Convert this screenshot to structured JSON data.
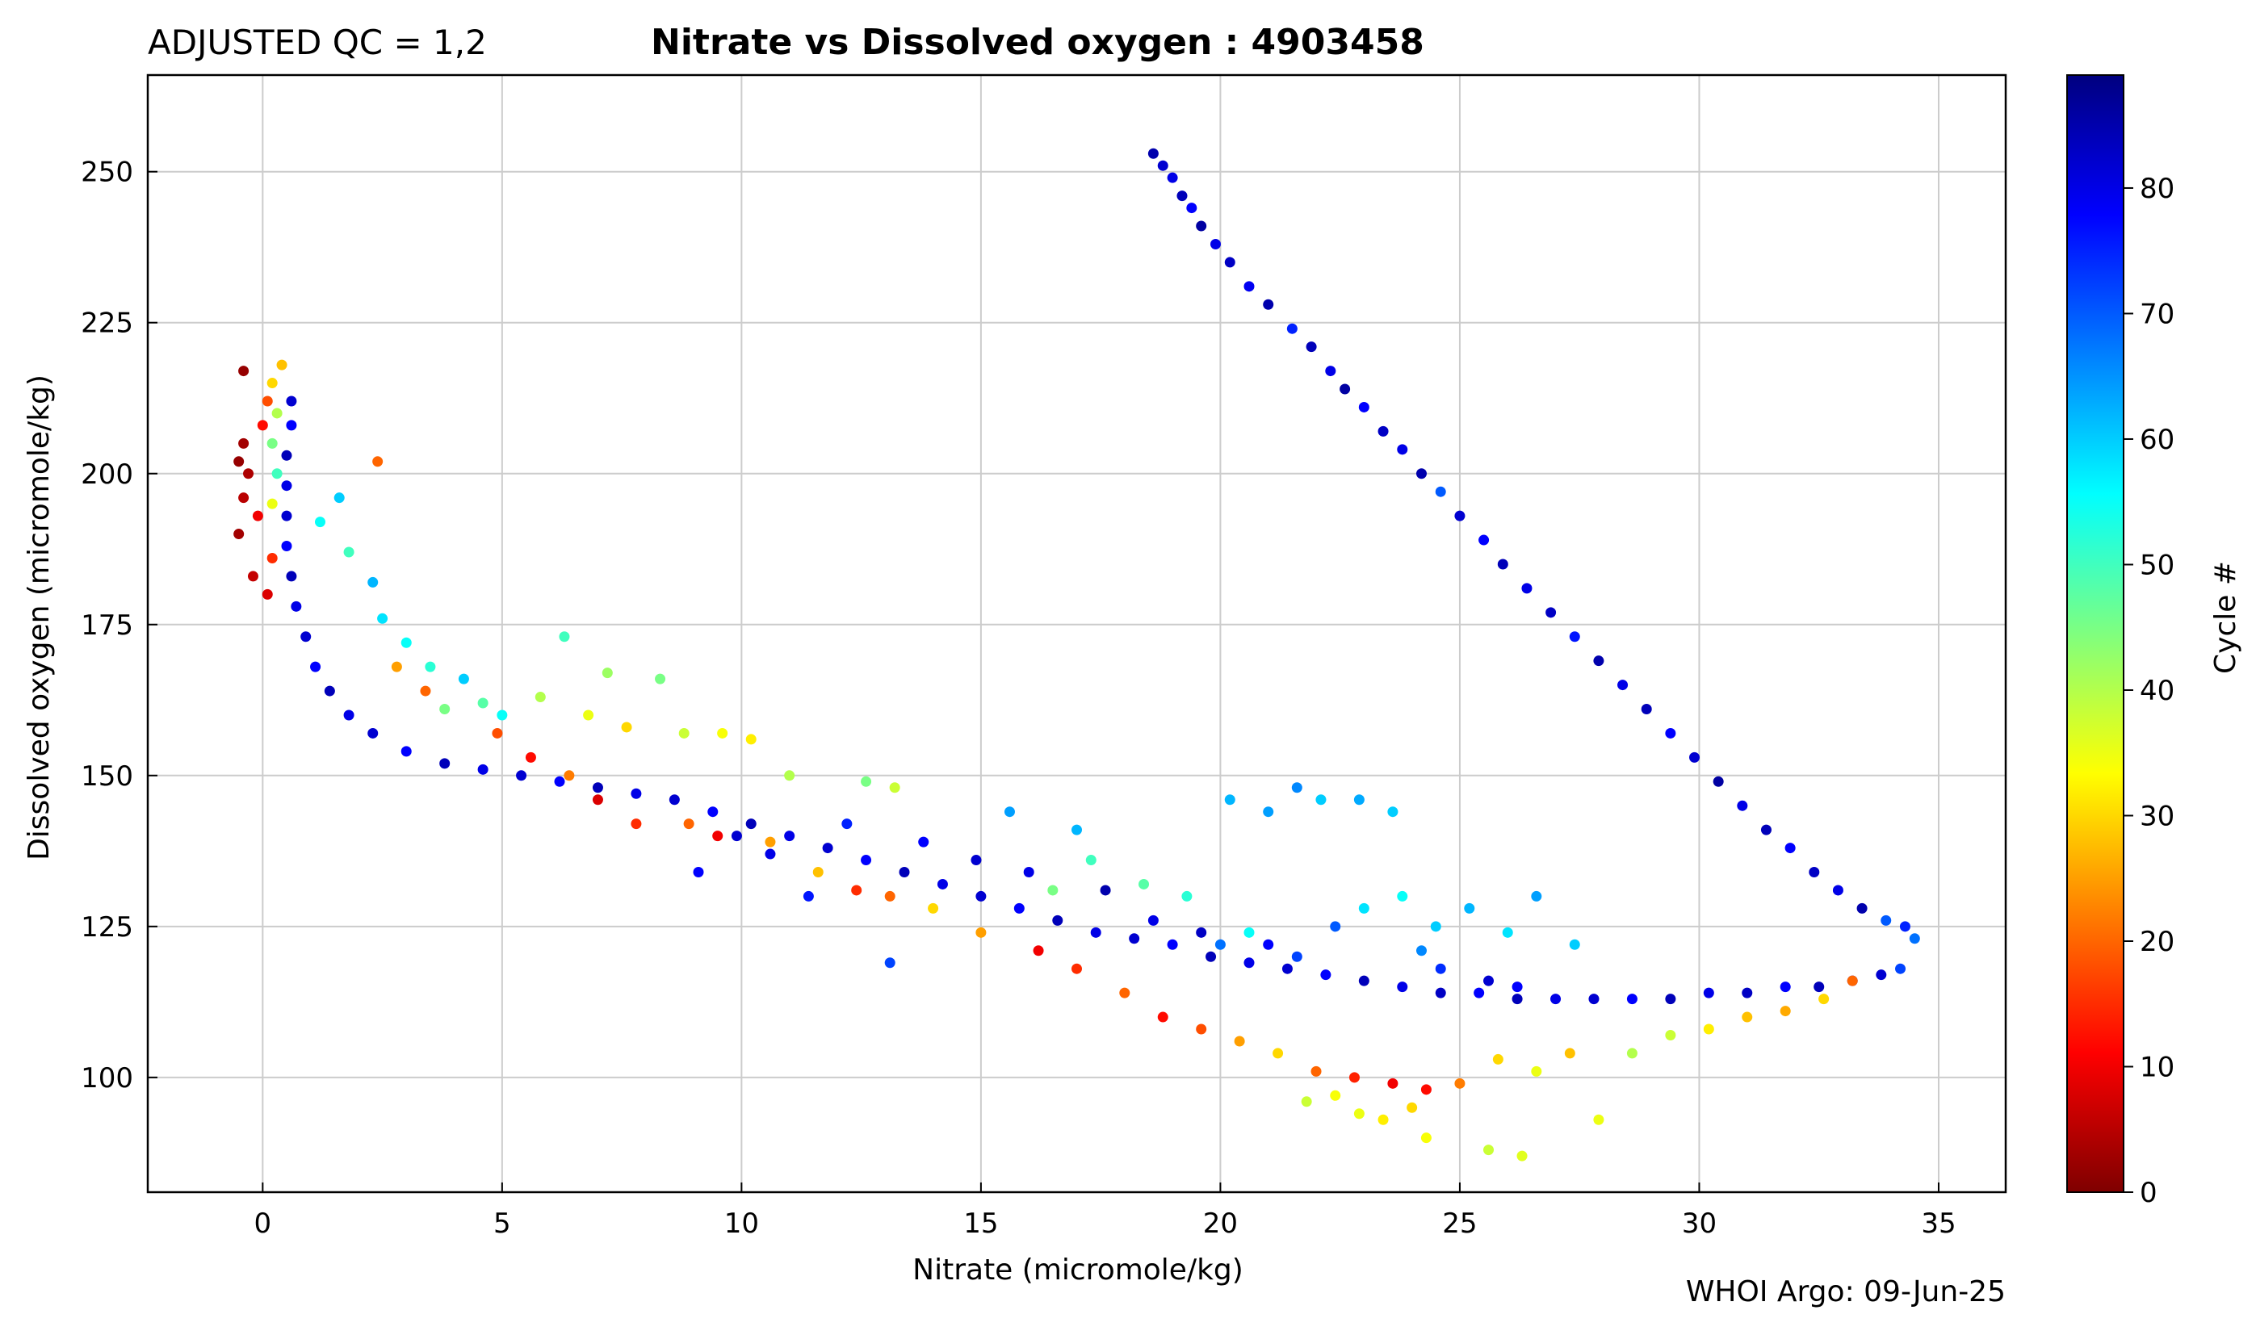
{
  "chart_data": {
    "type": "scatter",
    "title_left": "ADJUSTED QC = 1,2",
    "title": "Nitrate vs Dissolved oxygen : 4903458",
    "xlabel": "Nitrate  (micromole/kg)",
    "ylabel": "Dissolved oxygen  (micromole/kg)",
    "xlim": [
      -2.4,
      36.4
    ],
    "ylim": [
      81,
      266
    ],
    "xticks": [
      0,
      5,
      10,
      15,
      20,
      25,
      30,
      35
    ],
    "yticks": [
      100,
      125,
      150,
      175,
      200,
      225,
      250
    ],
    "grid": true,
    "colorbar": {
      "label": "Cycle #",
      "range": [
        0,
        89
      ],
      "ticks": [
        0,
        10,
        20,
        30,
        40,
        50,
        60,
        70,
        80
      ],
      "colormap": "jet_reversed",
      "colors_top_to_bottom": [
        "#00007f",
        "#0000ff",
        "#007fff",
        "#00ffff",
        "#7fff7f",
        "#ffff00",
        "#ff7f00",
        "#ff0000",
        "#7f0000"
      ]
    },
    "series": [
      {
        "points": [
          [
            18.6,
            253,
            85
          ],
          [
            18.8,
            251,
            82
          ],
          [
            19.0,
            249,
            80
          ],
          [
            19.2,
            246,
            84
          ],
          [
            19.4,
            244,
            78
          ],
          [
            19.6,
            241,
            86
          ],
          [
            19.9,
            238,
            80
          ],
          [
            20.2,
            235,
            83
          ],
          [
            20.6,
            231,
            79
          ],
          [
            21.0,
            228,
            85
          ],
          [
            21.5,
            224,
            75
          ],
          [
            21.9,
            221,
            84
          ],
          [
            22.3,
            217,
            80
          ],
          [
            22.6,
            214,
            86
          ],
          [
            23.0,
            211,
            78
          ],
          [
            23.4,
            207,
            83
          ],
          [
            23.8,
            204,
            80
          ],
          [
            24.2,
            200,
            85
          ],
          [
            24.6,
            197,
            70
          ],
          [
            25.0,
            193,
            82
          ],
          [
            25.5,
            189,
            78
          ],
          [
            25.9,
            185,
            84
          ],
          [
            26.4,
            181,
            80
          ],
          [
            26.9,
            177,
            83
          ],
          [
            27.4,
            173,
            76
          ],
          [
            27.9,
            169,
            85
          ],
          [
            28.4,
            165,
            80
          ],
          [
            28.9,
            161,
            84
          ],
          [
            29.4,
            157,
            78
          ],
          [
            29.9,
            153,
            82
          ],
          [
            30.4,
            149,
            86
          ],
          [
            30.9,
            145,
            80
          ],
          [
            31.4,
            141,
            84
          ],
          [
            31.9,
            138,
            78
          ],
          [
            32.4,
            134,
            83
          ],
          [
            32.9,
            131,
            80
          ],
          [
            33.4,
            128,
            85
          ],
          [
            33.9,
            126,
            70
          ],
          [
            34.3,
            125,
            75
          ],
          [
            34.5,
            123,
            68
          ],
          [
            34.2,
            118,
            72
          ],
          [
            33.8,
            117,
            82
          ],
          [
            33.2,
            116,
            80
          ],
          [
            32.5,
            115,
            84
          ],
          [
            31.8,
            115,
            78
          ],
          [
            31.0,
            114,
            83
          ],
          [
            30.2,
            114,
            80
          ],
          [
            29.4,
            113,
            84
          ],
          [
            28.6,
            113,
            78
          ],
          [
            27.8,
            113,
            82
          ],
          [
            27.0,
            113,
            80
          ],
          [
            26.2,
            113,
            84
          ],
          [
            25.4,
            114,
            78
          ],
          [
            24.6,
            114,
            83
          ],
          [
            23.8,
            115,
            80
          ],
          [
            23.0,
            116,
            84
          ],
          [
            22.2,
            117,
            78
          ],
          [
            21.4,
            118,
            82
          ],
          [
            20.6,
            119,
            80
          ],
          [
            19.8,
            120,
            84
          ],
          [
            19.0,
            122,
            78
          ],
          [
            18.2,
            123,
            82
          ],
          [
            17.4,
            124,
            80
          ],
          [
            16.6,
            126,
            84
          ],
          [
            15.8,
            128,
            78
          ],
          [
            15.0,
            130,
            82
          ],
          [
            14.2,
            132,
            80
          ],
          [
            13.4,
            134,
            84
          ],
          [
            12.6,
            136,
            78
          ],
          [
            11.8,
            138,
            82
          ],
          [
            11.0,
            140,
            80
          ],
          [
            10.2,
            142,
            84
          ],
          [
            9.4,
            144,
            78
          ],
          [
            8.6,
            146,
            82
          ],
          [
            7.8,
            147,
            80
          ],
          [
            7.0,
            148,
            84
          ],
          [
            6.2,
            149,
            78
          ],
          [
            5.4,
            150,
            82
          ],
          [
            4.6,
            151,
            80
          ],
          [
            3.8,
            152,
            84
          ],
          [
            3.0,
            154,
            78
          ],
          [
            2.3,
            157,
            82
          ],
          [
            1.8,
            160,
            80
          ],
          [
            1.4,
            164,
            84
          ],
          [
            1.1,
            168,
            78
          ],
          [
            0.9,
            173,
            82
          ],
          [
            0.7,
            178,
            80
          ],
          [
            0.6,
            183,
            84
          ],
          [
            0.5,
            188,
            78
          ],
          [
            0.5,
            193,
            82
          ],
          [
            0.5,
            198,
            80
          ],
          [
            0.5,
            203,
            84
          ],
          [
            0.6,
            208,
            78
          ],
          [
            0.6,
            212,
            82
          ],
          [
            0.2,
            215,
            30
          ],
          [
            0.3,
            210,
            40
          ],
          [
            0.2,
            205,
            45
          ],
          [
            0.3,
            200,
            50
          ],
          [
            0.2,
            195,
            35
          ],
          [
            0.4,
            218,
            28
          ],
          [
            -0.5,
            202,
            2
          ],
          [
            -0.4,
            205,
            3
          ],
          [
            -0.3,
            200,
            4
          ],
          [
            -0.4,
            196,
            5
          ],
          [
            -0.5,
            190,
            3
          ],
          [
            -0.2,
            183,
            6
          ],
          [
            -0.4,
            217,
            2
          ],
          [
            0.1,
            180,
            8
          ],
          [
            -0.1,
            193,
            10
          ],
          [
            0.0,
            208,
            12
          ],
          [
            0.2,
            186,
            15
          ],
          [
            0.1,
            212,
            18
          ],
          [
            2.4,
            202,
            20
          ],
          [
            1.6,
            196,
            60
          ],
          [
            1.2,
            192,
            55
          ],
          [
            1.8,
            187,
            50
          ],
          [
            2.3,
            182,
            62
          ],
          [
            2.5,
            176,
            58
          ],
          [
            3.0,
            172,
            55
          ],
          [
            3.5,
            168,
            52
          ],
          [
            4.2,
            166,
            60
          ],
          [
            3.8,
            161,
            45
          ],
          [
            4.6,
            162,
            48
          ],
          [
            5.0,
            160,
            55
          ],
          [
            5.8,
            163,
            40
          ],
          [
            6.3,
            173,
            50
          ],
          [
            7.2,
            167,
            42
          ],
          [
            8.3,
            166,
            45
          ],
          [
            6.8,
            160,
            35
          ],
          [
            7.6,
            158,
            30
          ],
          [
            8.8,
            157,
            38
          ],
          [
            9.6,
            157,
            34
          ],
          [
            10.2,
            156,
            32
          ],
          [
            11.0,
            150,
            40
          ],
          [
            12.6,
            149,
            45
          ],
          [
            13.2,
            148,
            38
          ],
          [
            2.8,
            168,
            25
          ],
          [
            3.4,
            164,
            20
          ],
          [
            4.9,
            157,
            18
          ],
          [
            5.6,
            153,
            12
          ],
          [
            6.4,
            150,
            22
          ],
          [
            7.0,
            146,
            8
          ],
          [
            7.8,
            142,
            15
          ],
          [
            8.9,
            142,
            20
          ],
          [
            9.5,
            140,
            10
          ],
          [
            10.6,
            139,
            25
          ],
          [
            11.6,
            134,
            28
          ],
          [
            12.4,
            131,
            15
          ],
          [
            13.1,
            130,
            20
          ],
          [
            14.0,
            128,
            30
          ],
          [
            15.0,
            124,
            25
          ],
          [
            16.2,
            121,
            10
          ],
          [
            17.0,
            118,
            15
          ],
          [
            18.0,
            114,
            20
          ],
          [
            18.8,
            110,
            12
          ],
          [
            19.6,
            108,
            18
          ],
          [
            20.4,
            106,
            25
          ],
          [
            21.2,
            104,
            30
          ],
          [
            22.0,
            101,
            20
          ],
          [
            22.8,
            100,
            14
          ],
          [
            23.6,
            99,
            10
          ],
          [
            24.3,
            98,
            12
          ],
          [
            25.0,
            99,
            22
          ],
          [
            25.8,
            103,
            30
          ],
          [
            26.6,
            101,
            35
          ],
          [
            27.3,
            104,
            28
          ],
          [
            27.9,
            93,
            35
          ],
          [
            28.6,
            104,
            40
          ],
          [
            29.4,
            107,
            38
          ],
          [
            30.2,
            108,
            32
          ],
          [
            31.0,
            110,
            28
          ],
          [
            31.8,
            111,
            26
          ],
          [
            32.6,
            113,
            30
          ],
          [
            33.2,
            116,
            20
          ],
          [
            22.9,
            94,
            35
          ],
          [
            23.4,
            93,
            32
          ],
          [
            24.3,
            90,
            34
          ],
          [
            25.6,
            88,
            38
          ],
          [
            26.3,
            87,
            36
          ],
          [
            24.0,
            95,
            30
          ],
          [
            21.8,
            96,
            38
          ],
          [
            22.4,
            97,
            34
          ],
          [
            20.2,
            146,
            62
          ],
          [
            21.0,
            144,
            64
          ],
          [
            21.6,
            148,
            66
          ],
          [
            22.1,
            146,
            60
          ],
          [
            22.9,
            146,
            63
          ],
          [
            23.6,
            144,
            60
          ],
          [
            17.0,
            141,
            62
          ],
          [
            15.6,
            144,
            64
          ],
          [
            23.0,
            128,
            58
          ],
          [
            23.8,
            130,
            55
          ],
          [
            24.5,
            125,
            60
          ],
          [
            25.2,
            128,
            62
          ],
          [
            26.0,
            124,
            58
          ],
          [
            26.6,
            130,
            64
          ],
          [
            27.4,
            122,
            60
          ],
          [
            20.6,
            124,
            55
          ],
          [
            19.3,
            130,
            52
          ],
          [
            18.4,
            132,
            48
          ],
          [
            17.3,
            136,
            50
          ],
          [
            16.5,
            131,
            45
          ],
          [
            20.0,
            122,
            68
          ],
          [
            21.6,
            120,
            72
          ],
          [
            22.4,
            125,
            70
          ],
          [
            24.2,
            121,
            66
          ],
          [
            12.2,
            142,
            75
          ],
          [
            13.8,
            139,
            78
          ],
          [
            14.9,
            136,
            82
          ],
          [
            16.0,
            134,
            80
          ],
          [
            17.6,
            131,
            85
          ],
          [
            18.6,
            126,
            80
          ],
          [
            19.6,
            124,
            83
          ],
          [
            21.0,
            122,
            78
          ],
          [
            24.6,
            118,
            74
          ],
          [
            25.6,
            116,
            82
          ],
          [
            26.2,
            115,
            78
          ],
          [
            13.1,
            119,
            72
          ],
          [
            11.4,
            130,
            76
          ],
          [
            10.6,
            137,
            80
          ],
          [
            9.9,
            140,
            82
          ],
          [
            9.1,
            134,
            78
          ]
        ]
      }
    ]
  },
  "footer": "WHOI Argo: 09-Jun-25"
}
